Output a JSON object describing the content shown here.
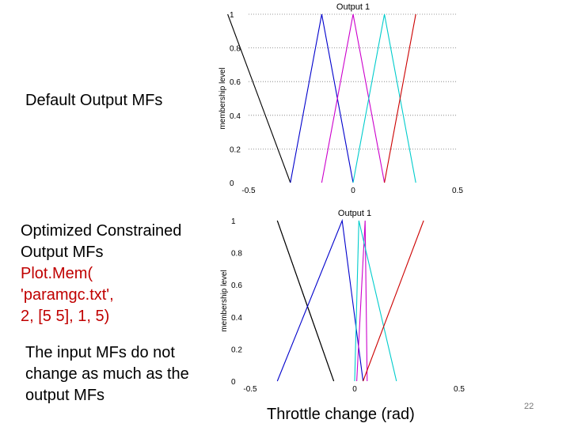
{
  "slide": {
    "label_default": "Default Output MFs",
    "label_optimized": [
      "Optimized Constrained",
      "Output MFs"
    ],
    "plot_command": [
      "Plot.Mem(",
      "'paramgc.txt',",
      "2, [5 5], 1, 5)"
    ],
    "note": [
      "The input MFs do not",
      "change as much as the",
      "output MFs"
    ],
    "xlabel": "Throttle change (rad)",
    "slide_number": "22"
  },
  "chart_data": [
    {
      "type": "line",
      "title": "Output 1",
      "ylabel": "membership level",
      "xlabel": "",
      "xlim": [
        -0.5,
        0.5
      ],
      "ylim": [
        0,
        1
      ],
      "xticks": [
        "-0.5",
        "0",
        "0.5"
      ],
      "yticks": [
        "0",
        "0.2",
        "0.4",
        "0.6",
        "0.8",
        "1"
      ],
      "grid": "horizontal dotted",
      "series": [
        {
          "color": "#000000",
          "x": [
            -0.6,
            -0.3
          ],
          "y": [
            1,
            0
          ]
        },
        {
          "color": "#0000cc",
          "x": [
            -0.3,
            -0.15,
            0
          ],
          "y": [
            0,
            1,
            0
          ]
        },
        {
          "color": "#cc00cc",
          "x": [
            -0.15,
            0,
            0.15
          ],
          "y": [
            0,
            1,
            0
          ]
        },
        {
          "color": "#00cccc",
          "x": [
            0,
            0.15,
            0.3
          ],
          "y": [
            0,
            1,
            0
          ]
        },
        {
          "color": "#cc0000",
          "x": [
            0.15,
            0.3
          ],
          "y": [
            0,
            1
          ]
        }
      ]
    },
    {
      "type": "line",
      "title": "Output 1",
      "ylabel": "membership level",
      "xlabel": "",
      "xlim": [
        -0.5,
        0.5
      ],
      "ylim": [
        0,
        1
      ],
      "xticks": [
        "-0.5",
        "0",
        "0.5"
      ],
      "yticks": [
        "0",
        "0.2",
        "0.4",
        "0.6",
        "0.8",
        "1"
      ],
      "grid": "none",
      "series": [
        {
          "color": "#000000",
          "x": [
            -0.37,
            -0.1
          ],
          "y": [
            1,
            0
          ]
        },
        {
          "color": "#000000",
          "x": [
            -0.37,
            -0.1
          ],
          "y": [
            1,
            0
          ]
        },
        {
          "color": "#0000cc",
          "x": [
            -0.37,
            -0.06,
            0.04
          ],
          "y": [
            0,
            1,
            0
          ]
        },
        {
          "color": "#cc00cc",
          "x": [
            0.01,
            0.05,
            0.06
          ],
          "y": [
            0,
            1,
            0
          ]
        },
        {
          "color": "#00cccc",
          "x": [
            0.0,
            0.02,
            0.2
          ],
          "y": [
            0,
            1,
            0
          ]
        },
        {
          "color": "#cc0000",
          "x": [
            0.04,
            0.33
          ],
          "y": [
            0,
            1
          ]
        }
      ]
    }
  ]
}
